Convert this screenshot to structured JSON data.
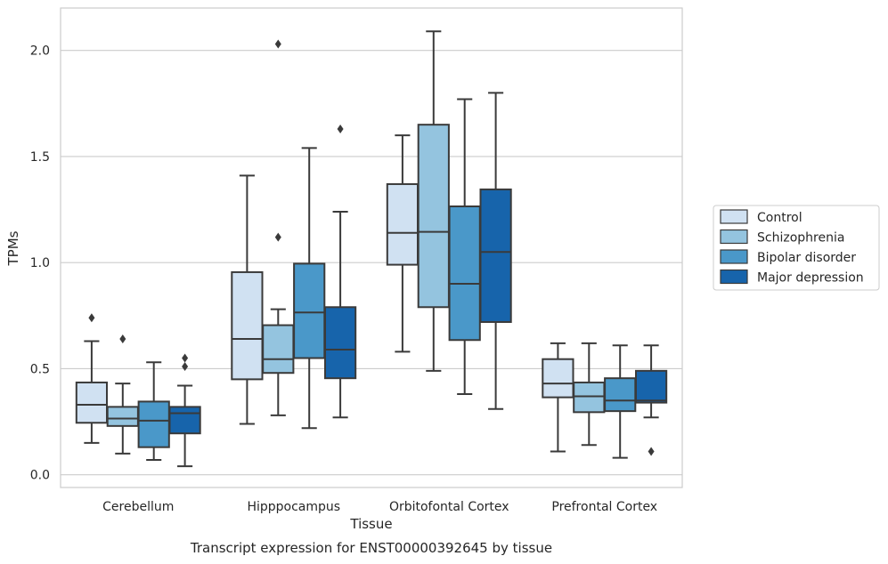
{
  "caption": "Transcript expression for ENST00000392645 by tissue",
  "chart_data": {
    "type": "box",
    "xlabel": "Tissue",
    "ylabel": "TPMs",
    "ylim": [
      -0.06,
      2.2
    ],
    "yticks": [
      "0.0",
      "0.5",
      "1.0",
      "1.5",
      "2.0"
    ],
    "grid": "horizontal",
    "legend_position": "right",
    "categories": [
      "Cerebellum",
      "Hipppocampus",
      "Orbitofontal Cortex",
      "Prefrontal Cortex"
    ],
    "series": [
      {
        "name": "Control",
        "color": "#d0e1f2",
        "boxes": [
          {
            "whislo": 0.15,
            "q1": 0.245,
            "med": 0.33,
            "q3": 0.435,
            "whishi": 0.63,
            "fliers": [
              0.74
            ]
          },
          {
            "whislo": 0.24,
            "q1": 0.45,
            "med": 0.64,
            "q3": 0.955,
            "whishi": 1.41,
            "fliers": []
          },
          {
            "whislo": 0.58,
            "q1": 0.99,
            "med": 1.14,
            "q3": 1.37,
            "whishi": 1.6,
            "fliers": []
          },
          {
            "whislo": 0.11,
            "q1": 0.365,
            "med": 0.43,
            "q3": 0.545,
            "whishi": 0.62,
            "fliers": []
          }
        ]
      },
      {
        "name": "Schizophrenia",
        "color": "#94c4df",
        "boxes": [
          {
            "whislo": 0.1,
            "q1": 0.23,
            "med": 0.265,
            "q3": 0.32,
            "whishi": 0.43,
            "fliers": [
              0.64
            ]
          },
          {
            "whislo": 0.28,
            "q1": 0.48,
            "med": 0.545,
            "q3": 0.705,
            "whishi": 0.78,
            "fliers": [
              1.12,
              2.03
            ]
          },
          {
            "whislo": 0.49,
            "q1": 0.79,
            "med": 1.145,
            "q3": 1.65,
            "whishi": 2.09,
            "fliers": []
          },
          {
            "whislo": 0.14,
            "q1": 0.295,
            "med": 0.37,
            "q3": 0.435,
            "whishi": 0.62,
            "fliers": []
          }
        ]
      },
      {
        "name": "Bipolar disorder",
        "color": "#4a98c9",
        "boxes": [
          {
            "whislo": 0.07,
            "q1": 0.13,
            "med": 0.255,
            "q3": 0.345,
            "whishi": 0.53,
            "fliers": []
          },
          {
            "whislo": 0.22,
            "q1": 0.55,
            "med": 0.765,
            "q3": 0.995,
            "whishi": 1.54,
            "fliers": []
          },
          {
            "whislo": 0.38,
            "q1": 0.635,
            "med": 0.9,
            "q3": 1.265,
            "whishi": 1.77,
            "fliers": []
          },
          {
            "whislo": 0.08,
            "q1": 0.3,
            "med": 0.35,
            "q3": 0.455,
            "whishi": 0.61,
            "fliers": []
          }
        ]
      },
      {
        "name": "Major depression",
        "color": "#1764ab",
        "boxes": [
          {
            "whislo": 0.04,
            "q1": 0.195,
            "med": 0.29,
            "q3": 0.32,
            "whishi": 0.42,
            "fliers": [
              0.51,
              0.55
            ]
          },
          {
            "whislo": 0.27,
            "q1": 0.455,
            "med": 0.59,
            "q3": 0.79,
            "whishi": 1.24,
            "fliers": [
              1.63
            ]
          },
          {
            "whislo": 0.31,
            "q1": 0.72,
            "med": 1.05,
            "q3": 1.345,
            "whishi": 1.8,
            "fliers": []
          },
          {
            "whislo": 0.27,
            "q1": 0.34,
            "med": 0.35,
            "q3": 0.49,
            "whishi": 0.61,
            "fliers": [
              0.11
            ]
          }
        ]
      }
    ]
  }
}
